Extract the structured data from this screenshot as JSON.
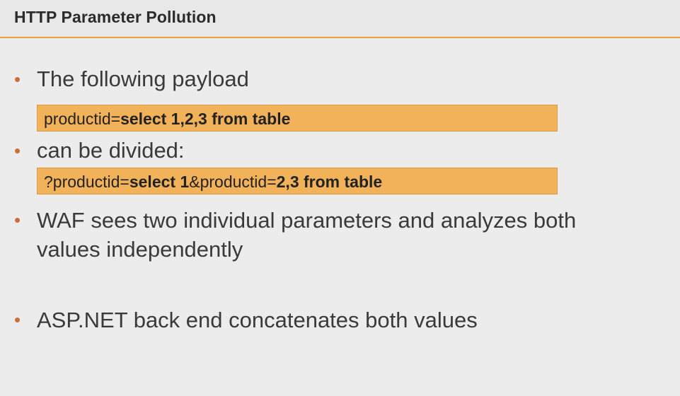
{
  "slide": {
    "title": "HTTP Parameter Pollution",
    "bullets": [
      "The following payload",
      "can be divided:",
      "WAF sees two individual parameters and analyzes both",
      "values independently",
      "ASP.NET back end concatenates both values"
    ],
    "code1": {
      "part1": "productid=",
      "part2": "select 1,2,3 from table"
    },
    "code2": {
      "part1": "?productid=",
      "part2": "select 1",
      "part3": "&productid=",
      "part4": "2,3 from table"
    }
  },
  "colors": {
    "accent": "#e9a23b",
    "code_box": "#f2b25a",
    "bullet": "#c8703a",
    "background": "#ececec"
  }
}
